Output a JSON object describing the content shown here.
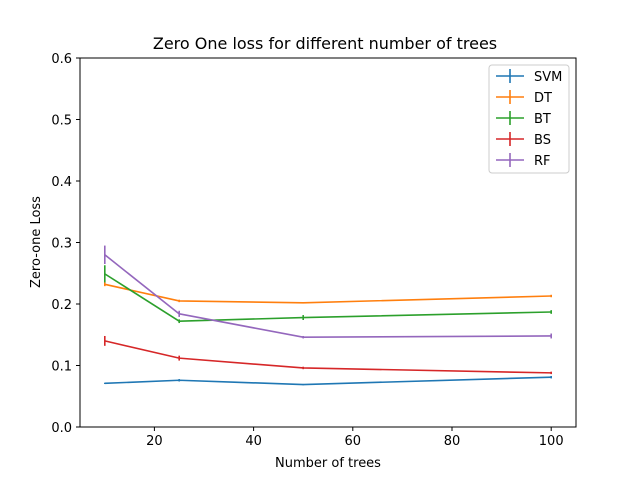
{
  "chart_data": {
    "type": "line",
    "title": "Zero One loss for different number of trees",
    "xlabel": "Number of trees",
    "ylabel": "Zero-one Loss",
    "x": [
      10,
      25,
      50,
      100
    ],
    "xlim": [
      5,
      105
    ],
    "ylim": [
      0,
      0.6
    ],
    "xticks": [
      20,
      40,
      60,
      80,
      100
    ],
    "yticks": [
      0.0,
      0.1,
      0.2,
      0.3,
      0.4,
      0.5,
      0.6
    ],
    "xtick_labels": [
      "20",
      "40",
      "60",
      "80",
      "100"
    ],
    "ytick_labels": [
      "0.0",
      "0.1",
      "0.2",
      "0.3",
      "0.4",
      "0.5",
      "0.6"
    ],
    "grid": false,
    "legend_position": "top-right",
    "error_bars": true,
    "series": [
      {
        "name": "SVM",
        "color": "#1f77b4",
        "values": [
          0.071,
          0.076,
          0.069,
          0.081
        ],
        "errors": [
          0.001,
          0.002,
          0.001,
          0.002
        ]
      },
      {
        "name": "DT",
        "color": "#ff7f0e",
        "values": [
          0.232,
          0.205,
          0.202,
          0.213
        ],
        "errors": [
          0.003,
          0.002,
          0.001,
          0.002
        ]
      },
      {
        "name": "BT",
        "color": "#2ca02c",
        "values": [
          0.249,
          0.172,
          0.178,
          0.187
        ],
        "errors": [
          0.014,
          0.003,
          0.004,
          0.003
        ]
      },
      {
        "name": "BS",
        "color": "#d62728",
        "values": [
          0.14,
          0.112,
          0.096,
          0.088
        ],
        "errors": [
          0.008,
          0.004,
          0.002,
          0.002
        ]
      },
      {
        "name": "RF",
        "color": "#9467bd",
        "values": [
          0.28,
          0.184,
          0.146,
          0.148
        ],
        "errors": [
          0.015,
          0.005,
          0.002,
          0.004
        ]
      }
    ]
  }
}
